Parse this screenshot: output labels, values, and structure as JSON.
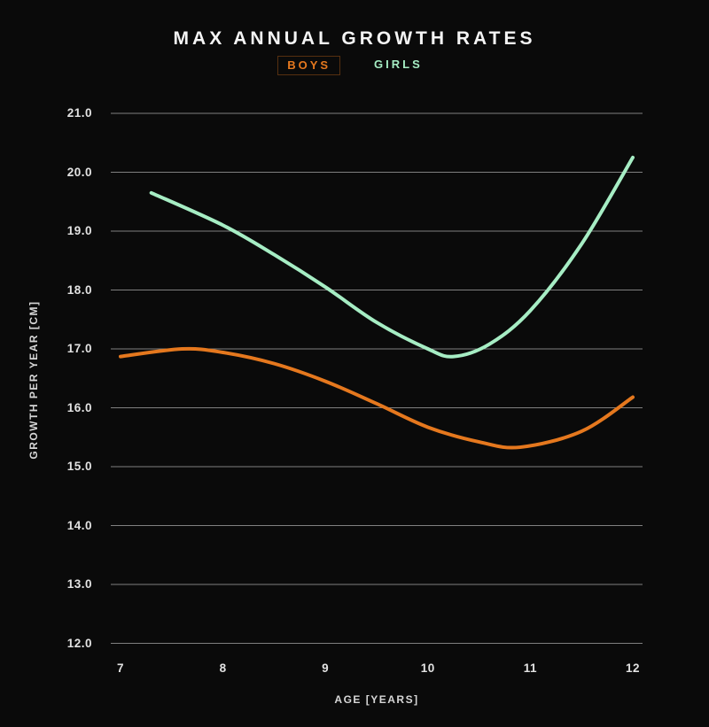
{
  "header": {
    "title": "MAX ANNUAL GROWTH RATES"
  },
  "legend": {
    "items": [
      {
        "label": "BOYS",
        "color": "#e5781e",
        "boxed": true
      },
      {
        "label": "GIRLS",
        "color": "#a6edc4",
        "boxed": false
      }
    ]
  },
  "colors": {
    "background": "#0a0a0a",
    "boys_line": "#e5781e",
    "girls_line": "#a6edc4",
    "gridline": "#808080",
    "tick_text": "#e2e2e2",
    "axis_title_text": "#d6d6d6",
    "title_text": "#f4f4f4"
  },
  "chart_data": {
    "type": "line",
    "title": "MAX ANNUAL GROWTH RATES",
    "xlabel": "AGE [YEARS]",
    "ylabel": "GROWTH PER YEAR [CM]",
    "x_ticks": [
      7,
      8,
      9,
      10,
      11,
      12
    ],
    "y_ticks": [
      "21.0",
      "20.0",
      "19.0",
      "18.0",
      "17.0",
      "16.0",
      "15.0",
      "14.0",
      "13.0",
      "12.0"
    ],
    "xlim": [
      7,
      12
    ],
    "ylim": [
      12,
      21
    ],
    "grid": "horizontal-only",
    "legend_position": "top-center",
    "series": [
      {
        "name": "BOYS",
        "color": "#e5781e",
        "points": [
          [
            7.0,
            16.87
          ],
          [
            7.6,
            17.0
          ],
          [
            8.0,
            16.94
          ],
          [
            8.5,
            16.75
          ],
          [
            9.0,
            16.45
          ],
          [
            9.5,
            16.07
          ],
          [
            10.0,
            15.67
          ],
          [
            10.5,
            15.42
          ],
          [
            10.9,
            15.33
          ],
          [
            11.5,
            15.6
          ],
          [
            12.0,
            16.18
          ]
        ]
      },
      {
        "name": "GIRLS",
        "color": "#a6edc4",
        "points": [
          [
            7.3,
            19.65
          ],
          [
            8.0,
            19.1
          ],
          [
            8.5,
            18.6
          ],
          [
            9.0,
            18.05
          ],
          [
            9.5,
            17.45
          ],
          [
            10.0,
            17.0
          ],
          [
            10.25,
            16.87
          ],
          [
            10.6,
            17.08
          ],
          [
            11.0,
            17.65
          ],
          [
            11.5,
            18.78
          ],
          [
            12.0,
            20.25
          ]
        ]
      }
    ]
  }
}
